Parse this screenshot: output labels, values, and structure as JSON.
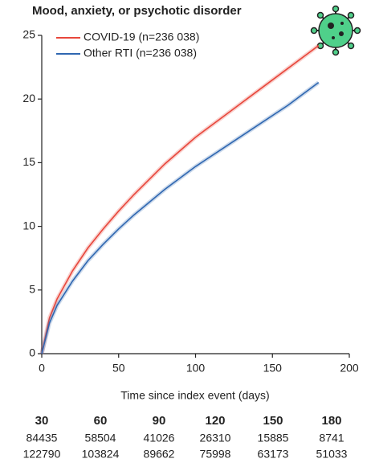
{
  "chart_data": {
    "type": "line",
    "title": "Mood, anxiety, or psychotic disorder",
    "x_label": "Time since index event (days)",
    "x": [
      0,
      5,
      10,
      20,
      30,
      40,
      50,
      60,
      80,
      100,
      120,
      140,
      160,
      180
    ],
    "series": [
      {
        "name": "COVID-19 (n=236 038)",
        "color": "#e8473c",
        "values": [
          0,
          2.8,
          4.3,
          6.5,
          8.3,
          9.8,
          11.2,
          12.5,
          14.9,
          17.0,
          18.8,
          20.6,
          22.4,
          24.2
        ]
      },
      {
        "name": "Other RTI (n=236 038)",
        "color": "#2f67b1",
        "values": [
          0,
          2.4,
          3.8,
          5.7,
          7.3,
          8.6,
          9.8,
          10.9,
          12.9,
          14.7,
          16.3,
          17.9,
          19.5,
          21.3
        ]
      }
    ],
    "xlim": [
      0,
      200
    ],
    "xticks": [
      0,
      50,
      100,
      150,
      200
    ],
    "ylim": [
      0,
      25
    ],
    "yticks": [
      0,
      5,
      10,
      15,
      20,
      25
    ],
    "legend": "upper-left",
    "risk_table": {
      "times": [
        "30",
        "60",
        "90",
        "120",
        "150",
        "180"
      ],
      "rows": [
        [
          "84435",
          "58504",
          "41026",
          "26310",
          "15885",
          "8741"
        ],
        [
          "122790",
          "103824",
          "89662",
          "75998",
          "63173",
          "51033"
        ]
      ]
    }
  }
}
